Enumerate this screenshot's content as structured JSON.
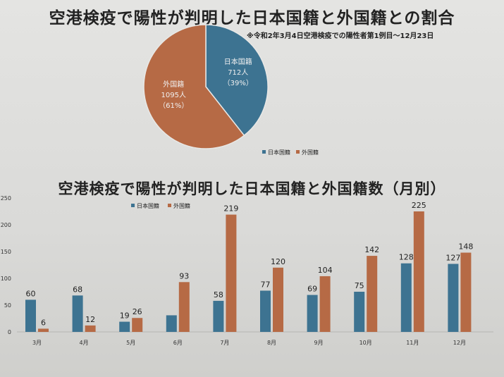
{
  "title_pie": "空港検疫で陽性が判明した日本国籍と外国籍との割合",
  "note": "※令和2年3月4日空港検疫での陽性者第1例目～12月23日",
  "title_bar": "空港検疫で陽性が判明した日本国籍と外国籍数（月別）",
  "colors": {
    "japanese": "#3d7391",
    "foreign": "#b66a45"
  },
  "chart_data": [
    {
      "type": "pie",
      "slices": [
        {
          "name": "日本国籍",
          "value": 712,
          "label_lines": [
            "日本国籍",
            "712人",
            "（39%）"
          ]
        },
        {
          "name": "外国籍",
          "value": 1095,
          "label_lines": [
            "外国籍",
            "1095人",
            "（61%）"
          ]
        }
      ],
      "legend": [
        "日本国籍",
        "外国籍"
      ],
      "legend_position": "bottom-right"
    },
    {
      "type": "bar",
      "categories": [
        "3月",
        "4月",
        "5月",
        "6月",
        "7月",
        "8月",
        "9月",
        "10月",
        "11月",
        "12月"
      ],
      "series": [
        {
          "name": "日本国籍",
          "values": [
            60,
            68,
            19,
            31,
            58,
            77,
            69,
            75,
            128,
            127
          ]
        },
        {
          "name": "外国籍",
          "values": [
            6,
            12,
            26,
            93,
            219,
            120,
            104,
            142,
            225,
            148
          ]
        }
      ],
      "data_labels": {
        "日本国籍": [
          "60",
          "68",
          "19",
          "",
          "58",
          "77",
          "69",
          "75",
          "128",
          "127"
        ],
        "外国籍": [
          "6",
          "12",
          "26",
          "93",
          "219",
          "120",
          "104",
          "142",
          "225",
          "148"
        ]
      },
      "yticks": [
        "0",
        "50",
        "100",
        "150",
        "200",
        "250"
      ],
      "ylim": [
        0,
        250
      ],
      "grid": false,
      "legend_position": "top-center"
    }
  ]
}
